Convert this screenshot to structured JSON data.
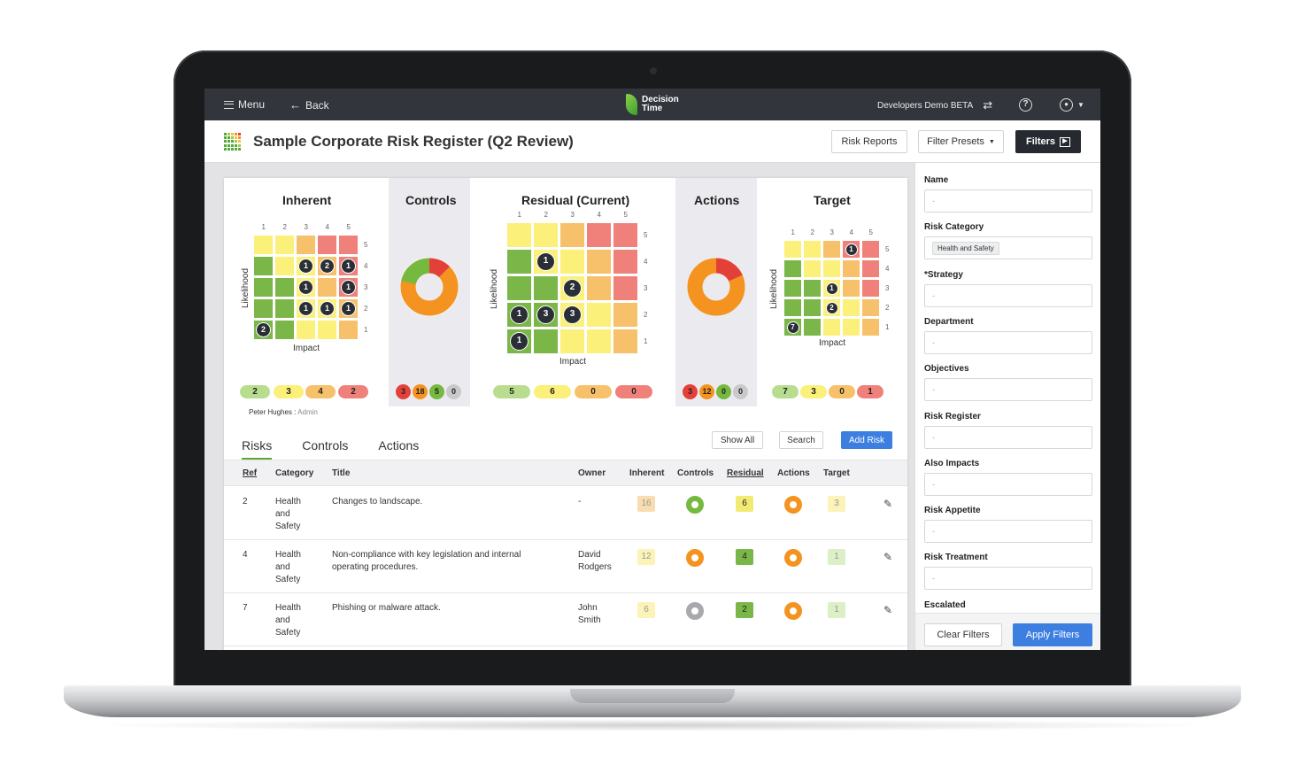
{
  "topbar": {
    "menu_label": "Menu",
    "back_label": "Back",
    "logo_line1": "Decision",
    "logo_line2": "Time",
    "workspace": "Developers Demo BETA",
    "help_icon": "?"
  },
  "header": {
    "title": "Sample Corporate Risk Register (Q2 Review)",
    "risk_reports": "Risk Reports",
    "filter_presets": "Filter Presets",
    "filters": "Filters"
  },
  "colors": {
    "green": "#7ab648",
    "yellow": "#fbf07a",
    "orange": "#f6c16a",
    "red": "#f0807a",
    "light_green": "#b8dd8e",
    "donut_orange": "#f4931f",
    "donut_red": "#e4403a",
    "donut_green": "#76b93f",
    "accent_blue": "#3c7fe0"
  },
  "matrices": {
    "inherent": {
      "title": "Inherent",
      "x_label": "Impact",
      "y_label": "Likelihood",
      "ticks_x": [
        "1",
        "2",
        "3",
        "4",
        "5"
      ],
      "ticks_y": [
        "5",
        "4",
        "3",
        "2",
        "1"
      ],
      "summary": [
        "2",
        "3",
        "4",
        "2"
      ]
    },
    "controls": {
      "title": "Controls",
      "summary": [
        "3",
        "18",
        "5",
        "0"
      ]
    },
    "residual": {
      "title": "Residual (Current)",
      "x_label": "Impact",
      "y_label": "Likelihood",
      "ticks_x": [
        "1",
        "2",
        "3",
        "4",
        "5"
      ],
      "ticks_y": [
        "5",
        "4",
        "3",
        "2",
        "1"
      ],
      "summary": [
        "5",
        "6",
        "0",
        "0"
      ]
    },
    "actions": {
      "title": "Actions",
      "summary": [
        "3",
        "12",
        "0",
        "0"
      ]
    },
    "target": {
      "title": "Target",
      "x_label": "Impact",
      "y_label": "Likelihood",
      "ticks_x": [
        "1",
        "2",
        "3",
        "4",
        "5"
      ],
      "ticks_y": [
        "5",
        "4",
        "3",
        "2",
        "1"
      ],
      "summary": [
        "7",
        "3",
        "0",
        "1"
      ]
    }
  },
  "owner_line": {
    "name": "Peter Hughes :",
    "role": "Admin"
  },
  "tabs": [
    "Risks",
    "Controls",
    "Actions"
  ],
  "table_buttons": {
    "show_all": "Show All",
    "search": "Search",
    "add_risk": "Add Risk"
  },
  "table": {
    "headers": [
      "Ref",
      "Category",
      "Title",
      "Owner",
      "Inherent",
      "Controls",
      "Residual",
      "Actions",
      "Target"
    ],
    "rows": [
      {
        "ref": "2",
        "category": [
          "Health",
          "and",
          "Safety"
        ],
        "title": [
          "Changes to landscape.",
          ""
        ],
        "owner": [
          "-",
          ""
        ],
        "inherent": "16",
        "residual": "6",
        "target": "3"
      },
      {
        "ref": "4",
        "category": [
          "Health",
          "and",
          "Safety"
        ],
        "title": [
          "Non-compliance with key legislation and internal",
          "operating procedures."
        ],
        "owner": [
          "David",
          "Rodgers"
        ],
        "inherent": "12",
        "residual": "4",
        "target": "1"
      },
      {
        "ref": "7",
        "category": [
          "Health",
          "and",
          "Safety"
        ],
        "title": [
          "Phishing or malware attack.",
          ""
        ],
        "owner": [
          "John",
          "Smith"
        ],
        "inherent": "6",
        "residual": "2",
        "target": "1"
      }
    ]
  },
  "filters": {
    "fields": [
      {
        "label": "Name",
        "value": "-"
      },
      {
        "label": "Risk Category",
        "value": "Health and Safety"
      },
      {
        "label": "*Strategy",
        "value": "-"
      },
      {
        "label": "Department",
        "value": "-"
      },
      {
        "label": "Objectives",
        "value": "-"
      },
      {
        "label": "Risk Register",
        "value": "-"
      },
      {
        "label": "Also Impacts",
        "value": "-"
      },
      {
        "label": "Risk Appetite",
        "value": "-"
      },
      {
        "label": "Risk Treatment",
        "value": "-"
      },
      {
        "label": "Escalated",
        "value": ""
      }
    ],
    "clear": "Clear Filters",
    "apply": "Apply Filters"
  }
}
